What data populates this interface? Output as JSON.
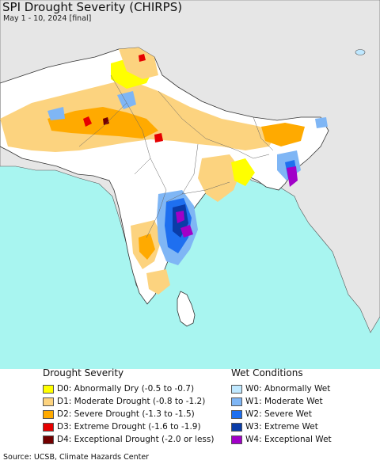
{
  "title": "SPI Drought Severity (CHIRPS)",
  "subtitle": "May 1 - 10, 2024 [final]",
  "source": "Source: UCSB, Climate Hazards Center",
  "legend": {
    "drought": {
      "heading": "Drought Severity",
      "items": [
        {
          "code": "D0",
          "label": "D0: Abnormally Dry (-0.5 to -0.7)",
          "color": "#ffff00"
        },
        {
          "code": "D1",
          "label": "D1: Moderate Drought (-0.8 to -1.2)",
          "color": "#fcd37f"
        },
        {
          "code": "D2",
          "label": "D2: Severe Drought (-1.3 to -1.5)",
          "color": "#ffaa00"
        },
        {
          "code": "D3",
          "label": "D3: Extreme Drought (-1.6 to -1.9)",
          "color": "#e60000"
        },
        {
          "code": "D4",
          "label": "D4: Exceptional Drought (-2.0 or less)",
          "color": "#730000"
        }
      ]
    },
    "wet": {
      "heading": "Wet Conditions",
      "items": [
        {
          "code": "W0",
          "label": "W0: Abnormally Wet",
          "color": "#bfe8ff"
        },
        {
          "code": "W1",
          "label": "W1: Moderate Wet",
          "color": "#7fb6f5"
        },
        {
          "code": "W2",
          "label": "W2: Severe Wet",
          "color": "#1e6ff0"
        },
        {
          "code": "W3",
          "label": "W3: Extreme Wet",
          "color": "#0a3ca8"
        },
        {
          "code": "W4",
          "label": "W4: Exceptional Wet",
          "color": "#a100c8"
        }
      ]
    }
  },
  "map_colors": {
    "ocean": "#a8f5f0",
    "land_outside": "#e6e6e6",
    "land_inside": "#ffffff",
    "border": "#333333"
  }
}
